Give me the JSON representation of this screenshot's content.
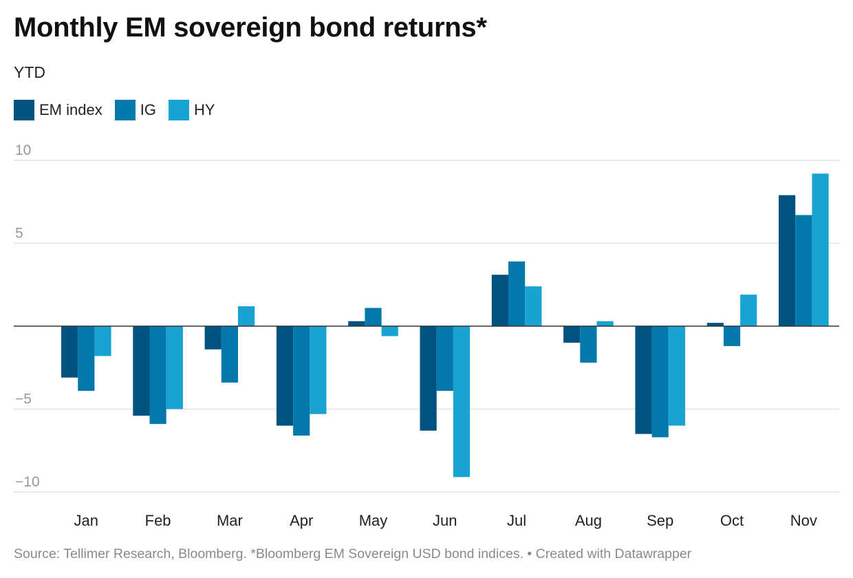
{
  "title": "Monthly EM sovereign bond returns*",
  "subtitle": "YTD",
  "footer": "Source: Tellimer Research, Bloomberg. *Bloomberg EM Sovereign USD bond indices. • Created with Datawrapper",
  "chart_data": {
    "type": "bar",
    "title": "Monthly EM sovereign bond returns*",
    "subtitle": "YTD",
    "categories": [
      "Jan",
      "Feb",
      "Mar",
      "Apr",
      "May",
      "Jun",
      "Jul",
      "Aug",
      "Sep",
      "Oct",
      "Nov"
    ],
    "series": [
      {
        "name": "EM index",
        "color": "#00537e",
        "values": [
          -3.1,
          -5.4,
          -1.4,
          -6.0,
          0.3,
          -6.3,
          3.1,
          -1.0,
          -6.5,
          0.2,
          7.9
        ]
      },
      {
        "name": "IG",
        "color": "#0279aa",
        "values": [
          -3.9,
          -5.9,
          -3.4,
          -6.6,
          1.1,
          -3.9,
          3.9,
          -2.2,
          -6.7,
          -1.2,
          6.7
        ]
      },
      {
        "name": "HY",
        "color": "#18a3d2",
        "values": [
          -1.8,
          -5.0,
          1.2,
          -5.3,
          -0.6,
          -9.1,
          2.4,
          0.3,
          -6.0,
          1.9,
          9.2
        ]
      }
    ],
    "yticks": [
      10,
      5,
      0,
      -5,
      -10
    ],
    "ytick_labels": [
      "10",
      "5",
      "",
      "−5",
      "−10"
    ],
    "ylim": [
      -10,
      10
    ],
    "grid": true,
    "legend_position": "top-left"
  }
}
